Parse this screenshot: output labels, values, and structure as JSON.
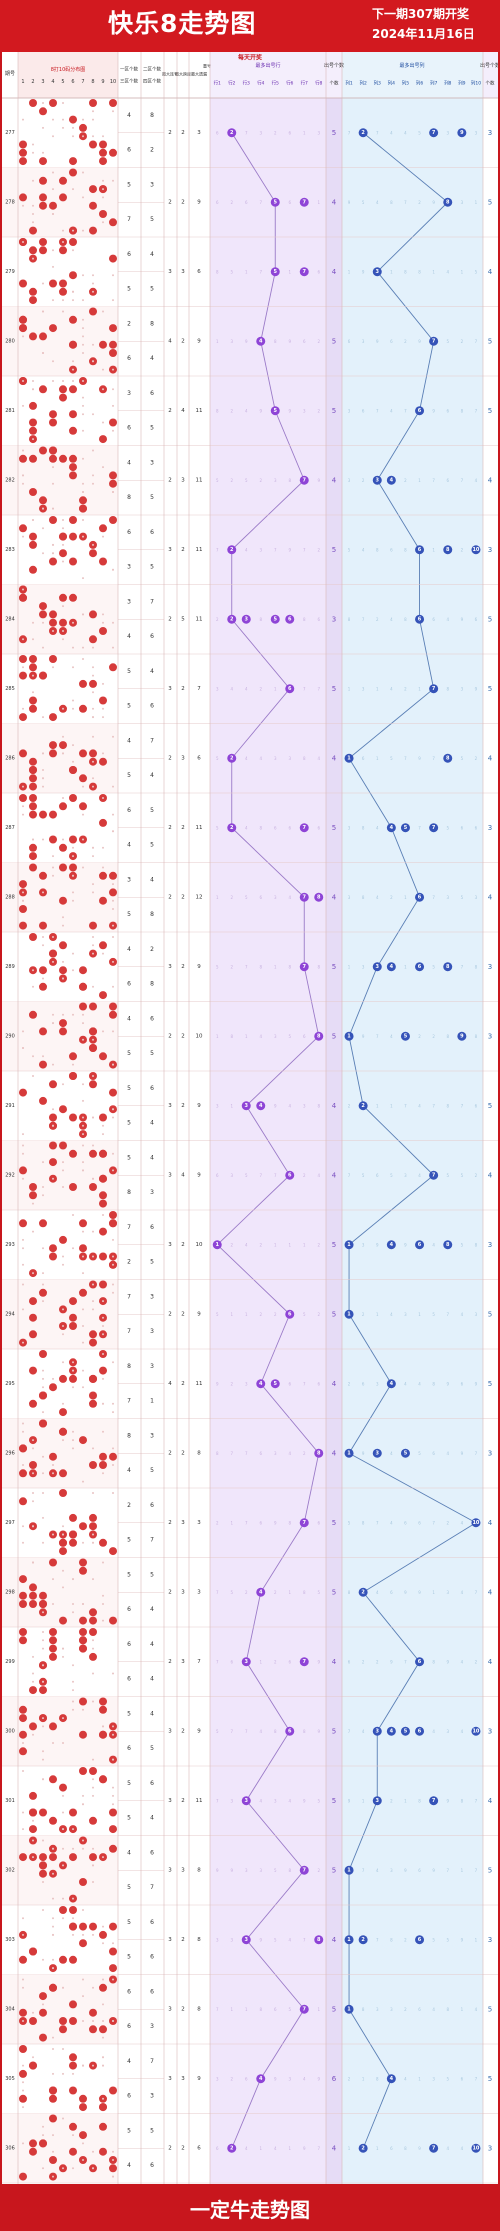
{
  "header": {
    "title": "快乐8走势图",
    "next_draw": "下一期307期开奖",
    "date": "2024年11月16日"
  },
  "table": {
    "subheader": "每天开奖",
    "col_headers": {
      "issue": "期号",
      "dist_area": "8打10码分布图",
      "dist_nums": [
        "1",
        "2",
        "3",
        "4",
        "5",
        "6",
        "7",
        "8",
        "9",
        "10"
      ],
      "area1_count": "一区个数",
      "area3_count": "三区个数",
      "area2_count": "二区个数",
      "area4_count": "四区个数",
      "max_consec": "最大连号",
      "span": "最大跨度",
      "max_gap": "最大遗漏",
      "repeat": "重号",
      "position_group": "最多出号行",
      "hit_count": "出号个数",
      "position_group2": "最多出号列",
      "hit_count2": "出号个数"
    },
    "pos_labels_left": [
      "行1",
      "行2",
      "行3",
      "行4",
      "行5",
      "行6",
      "行7",
      "行8"
    ],
    "pos_labels_right": [
      "列1",
      "列2",
      "列3",
      "列4",
      "列5",
      "列6",
      "列7",
      "列8",
      "列9",
      "列10"
    ]
  },
  "rows": [
    {
      "issue": "277",
      "area1": "4",
      "area2": "8",
      "area3": "6",
      "area4": "2",
      "s1": "2",
      "s2": "2",
      "s3": "3",
      "L": [
        2
      ],
      "lc": "5",
      "R": [
        2,
        7,
        9
      ],
      "rc": "3"
    },
    {
      "issue": "278",
      "area1": "5",
      "area2": "3",
      "area3": "7",
      "area4": "5",
      "s1": "2",
      "s2": "2",
      "s3": "9",
      "L": [
        5,
        7
      ],
      "lc": "4",
      "R": [
        8
      ],
      "rc": "5"
    },
    {
      "issue": "279",
      "area1": "6",
      "area2": "4",
      "area3": "5",
      "area4": "5",
      "s1": "3",
      "s2": "3",
      "s3": "6",
      "L": [
        5,
        7
      ],
      "lc": "4",
      "R": [
        3
      ],
      "rc": "4"
    },
    {
      "issue": "280",
      "area1": "2",
      "area2": "8",
      "area3": "6",
      "area4": "4",
      "s1": "4",
      "s2": "2",
      "s3": "9",
      "L": [
        4
      ],
      "lc": "5",
      "R": [
        7
      ],
      "rc": "5"
    },
    {
      "issue": "281",
      "area1": "3",
      "area2": "6",
      "area3": "6",
      "area4": "5",
      "s1": "2",
      "s2": "4",
      "s3": "11",
      "L": [
        5
      ],
      "lc": "5",
      "R": [
        6
      ],
      "rc": "5"
    },
    {
      "issue": "282",
      "area1": "4",
      "area2": "3",
      "area3": "8",
      "area4": "5",
      "s1": "2",
      "s2": "3",
      "s3": "11",
      "L": [
        7
      ],
      "lc": "4",
      "R": [
        3,
        4
      ],
      "rc": "4"
    },
    {
      "issue": "283",
      "area1": "6",
      "area2": "6",
      "area3": "3",
      "area4": "5",
      "s1": "3",
      "s2": "2",
      "s3": "11",
      "L": [
        2
      ],
      "lc": "5",
      "R": [
        6,
        8,
        10
      ],
      "rc": "3"
    },
    {
      "issue": "284",
      "area1": "3",
      "area2": "7",
      "area3": "4",
      "area4": "6",
      "s1": "2",
      "s2": "5",
      "s3": "11",
      "L": [
        2,
        3,
        5,
        6
      ],
      "lc": "3",
      "R": [
        6
      ],
      "rc": "5"
    },
    {
      "issue": "285",
      "area1": "5",
      "area2": "4",
      "area3": "5",
      "area4": "6",
      "s1": "3",
      "s2": "2",
      "s3": "7",
      "L": [
        6
      ],
      "lc": "5",
      "R": [
        7
      ],
      "rc": "5"
    },
    {
      "issue": "286",
      "area1": "4",
      "area2": "7",
      "area3": "5",
      "area4": "4",
      "s1": "2",
      "s2": "3",
      "s3": "6",
      "L": [
        2
      ],
      "lc": "4",
      "R": [
        1,
        8
      ],
      "rc": "4"
    },
    {
      "issue": "287",
      "area1": "6",
      "area2": "5",
      "area3": "4",
      "area4": "5",
      "s1": "2",
      "s2": "2",
      "s3": "11",
      "L": [
        2,
        7
      ],
      "lc": "5",
      "R": [
        4,
        5,
        7
      ],
      "rc": "3"
    },
    {
      "issue": "288",
      "area1": "3",
      "area2": "4",
      "area3": "5",
      "area4": "8",
      "s1": "2",
      "s2": "2",
      "s3": "12",
      "L": [
        7,
        8
      ],
      "lc": "4",
      "R": [
        6
      ],
      "rc": "4"
    },
    {
      "issue": "289",
      "area1": "4",
      "area2": "2",
      "area3": "6",
      "area4": "8",
      "s1": "3",
      "s2": "2",
      "s3": "9",
      "L": [
        7
      ],
      "lc": "5",
      "R": [
        3,
        4,
        6,
        8
      ],
      "rc": "3"
    },
    {
      "issue": "290",
      "area1": "4",
      "area2": "6",
      "area3": "5",
      "area4": "5",
      "s1": "2",
      "s2": "2",
      "s3": "10",
      "L": [
        8
      ],
      "lc": "5",
      "R": [
        1,
        5,
        9
      ],
      "rc": "3"
    },
    {
      "issue": "291",
      "area1": "5",
      "area2": "6",
      "area3": "5",
      "area4": "4",
      "s1": "3",
      "s2": "2",
      "s3": "9",
      "L": [
        3,
        4
      ],
      "lc": "4",
      "R": [
        2
      ],
      "rc": "5"
    },
    {
      "issue": "292",
      "area1": "5",
      "area2": "4",
      "area3": "8",
      "area4": "3",
      "s1": "3",
      "s2": "4",
      "s3": "9",
      "L": [
        6
      ],
      "lc": "4",
      "R": [
        7
      ],
      "rc": "4"
    },
    {
      "issue": "293",
      "area1": "7",
      "area2": "6",
      "area3": "2",
      "area4": "5",
      "s1": "3",
      "s2": "2",
      "s3": "10",
      "L": [
        1
      ],
      "lc": "5",
      "R": [
        1,
        4,
        6,
        8
      ],
      "rc": "3"
    },
    {
      "issue": "294",
      "area1": "7",
      "area2": "3",
      "area3": "7",
      "area4": "3",
      "s1": "2",
      "s2": "2",
      "s3": "9",
      "L": [
        6
      ],
      "lc": "5",
      "R": [
        1
      ],
      "rc": "5"
    },
    {
      "issue": "295",
      "area1": "8",
      "area2": "3",
      "area3": "7",
      "area4": "1",
      "s1": "4",
      "s2": "2",
      "s3": "11",
      "L": [
        4,
        5
      ],
      "lc": "4",
      "R": [
        4
      ],
      "rc": "5"
    },
    {
      "issue": "296",
      "area1": "8",
      "area2": "3",
      "area3": "4",
      "area4": "5",
      "s1": "2",
      "s2": "2",
      "s3": "8",
      "L": [
        8
      ],
      "lc": "4",
      "R": [
        1,
        3,
        5
      ],
      "rc": "3"
    },
    {
      "issue": "297",
      "area1": "2",
      "area2": "6",
      "area3": "5",
      "area4": "7",
      "s1": "2",
      "s2": "3",
      "s3": "3",
      "L": [
        7
      ],
      "lc": "5",
      "R": [
        10
      ],
      "rc": "4"
    },
    {
      "issue": "298",
      "area1": "5",
      "area2": "5",
      "area3": "6",
      "area4": "4",
      "s1": "2",
      "s2": "3",
      "s3": "3",
      "L": [
        4
      ],
      "lc": "5",
      "R": [
        2
      ],
      "rc": "4"
    },
    {
      "issue": "299",
      "area1": "6",
      "area2": "4",
      "area3": "6",
      "area4": "4",
      "s1": "2",
      "s2": "3",
      "s3": "7",
      "L": [
        3,
        7
      ],
      "lc": "4",
      "R": [
        6
      ],
      "rc": "4"
    },
    {
      "issue": "300",
      "area1": "5",
      "area2": "4",
      "area3": "6",
      "area4": "5",
      "s1": "3",
      "s2": "2",
      "s3": "9",
      "L": [
        6
      ],
      "lc": "5",
      "R": [
        3,
        4,
        5,
        6,
        10
      ],
      "rc": "3"
    },
    {
      "issue": "301",
      "area1": "5",
      "area2": "6",
      "area3": "5",
      "area4": "4",
      "s1": "3",
      "s2": "2",
      "s3": "11",
      "L": [
        3
      ],
      "lc": "5",
      "R": [
        3,
        7
      ],
      "rc": "4"
    },
    {
      "issue": "302",
      "area1": "4",
      "area2": "6",
      "area3": "5",
      "area4": "7",
      "s1": "3",
      "s2": "3",
      "s3": "8",
      "L": [
        7
      ],
      "lc": "5",
      "R": [
        1
      ],
      "rc": "5"
    },
    {
      "issue": "303",
      "area1": "5",
      "area2": "6",
      "area3": "5",
      "area4": "6",
      "s1": "3",
      "s2": "2",
      "s3": "8",
      "L": [
        3,
        8
      ],
      "lc": "4",
      "R": [
        1,
        2,
        6
      ],
      "rc": "3"
    },
    {
      "issue": "304",
      "area1": "6",
      "area2": "6",
      "area3": "6",
      "area4": "3",
      "s1": "3",
      "s2": "2",
      "s3": "8",
      "L": [
        7
      ],
      "lc": "5",
      "R": [
        1
      ],
      "rc": "5"
    },
    {
      "issue": "305",
      "area1": "4",
      "area2": "7",
      "area3": "6",
      "area4": "3",
      "s1": "3",
      "s2": "3",
      "s3": "9",
      "L": [
        4
      ],
      "lc": "6",
      "R": [
        4
      ],
      "rc": "5"
    },
    {
      "issue": "306",
      "area1": "5",
      "area2": "5",
      "area3": "4",
      "area4": "6",
      "s1": "2",
      "s2": "2",
      "s3": "6",
      "L": [
        2
      ],
      "lc": "4",
      "R": [
        2,
        7,
        10
      ],
      "rc": "3"
    }
  ],
  "footer": {
    "text": "一定牛走势图"
  },
  "colors": {
    "brand_red": "#c8161d",
    "ball_red": "#d63a3a",
    "ball_purple": "#8e44d6",
    "ball_blue": "#3553b8",
    "lane_purple": "#f0e6fb",
    "lane_blue": "#e3f1fb"
  }
}
